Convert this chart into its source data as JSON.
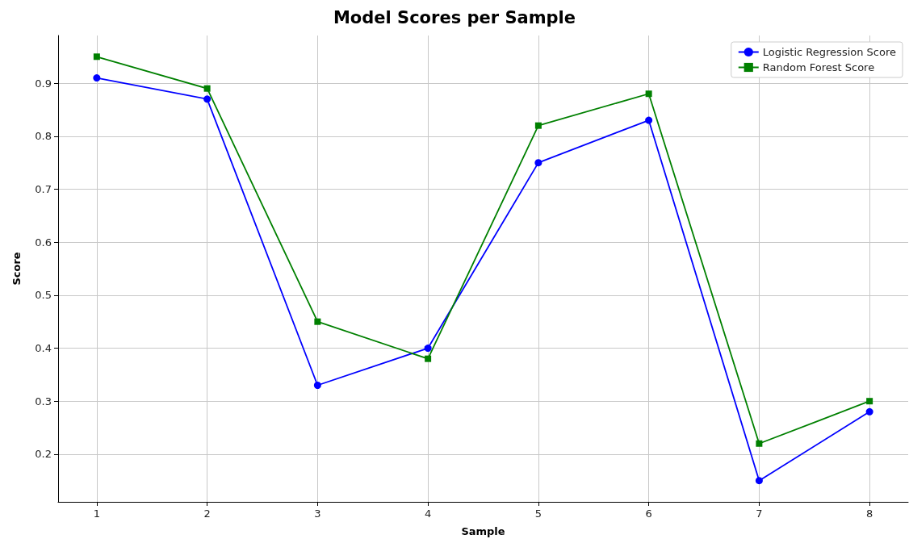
{
  "chart_data": {
    "type": "line",
    "title": "Model Scores per Sample",
    "xlabel": "Sample",
    "ylabel": "Score",
    "x": [
      1,
      2,
      3,
      4,
      5,
      6,
      7,
      8
    ],
    "series": [
      {
        "name": "Logistic Regression Score",
        "color": "#0000ff",
        "marker": "circle",
        "values": [
          0.91,
          0.87,
          0.33,
          0.4,
          0.75,
          0.83,
          0.15,
          0.28
        ]
      },
      {
        "name": "Random Forest Score",
        "color": "#008000",
        "marker": "square",
        "values": [
          0.95,
          0.89,
          0.45,
          0.38,
          0.82,
          0.88,
          0.22,
          0.3
        ]
      }
    ],
    "xlim": [
      0.65,
      8.35
    ],
    "xticks": [
      1,
      2,
      3,
      4,
      5,
      6,
      7,
      8
    ],
    "ylim": [
      0.11,
      0.99
    ],
    "yticks": [
      0.2,
      0.3,
      0.4,
      0.5,
      0.6,
      0.7,
      0.8,
      0.9
    ],
    "grid": true,
    "legend": "top right"
  }
}
